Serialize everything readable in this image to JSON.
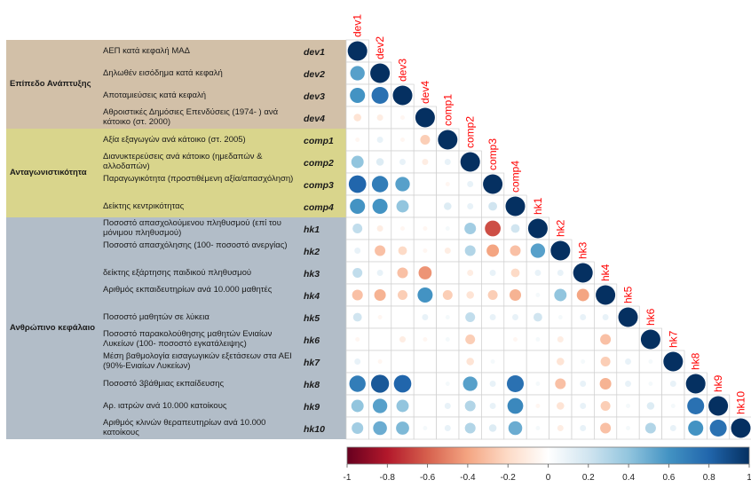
{
  "groups": [
    {
      "label": "Επίπεδο Ανάπτυξης",
      "color": "#d2c0a8",
      "items": [
        {
          "desc": "ΑΕΠ κατά κεφαλή ΜΑΔ",
          "code": "dev1"
        },
        {
          "desc": "Δηλωθέν εισόδημα κατά κεφαλή",
          "code": "dev2"
        },
        {
          "desc": "Αποταμιεύσεις κατά κεφαλή",
          "code": "dev3"
        },
        {
          "desc": "Αθροιστικές  Δημόσιες Επενδύσεις (1974- ) ανά κάτοικο (στ. 2000)",
          "code": "dev4"
        }
      ]
    },
    {
      "label": "Ανταγωνιστικότητα",
      "color": "#d9d58c",
      "items": [
        {
          "desc": "Αξία εξαγωγών ανά κάτοικο (στ. 2005)",
          "code": "comp1"
        },
        {
          "desc": "Διανυκτερεύσεις ανά κάτοικο (ημεδαπών & αλλοδαπών)",
          "code": "comp2"
        },
        {
          "desc": "Παραγωγικότητα (προστιθέμενη αξία/απασχόληση)",
          "code": "comp3"
        },
        {
          "desc": "Δείκτης κεντρικότητας",
          "code": "comp4"
        }
      ]
    },
    {
      "label": "Ανθρώπινο κεφάλαιο",
      "color": "#b2bdc8",
      "items": [
        {
          "desc": "Ποσοστό απασχολούμενου πληθυσμού (επί του μόνιμου πληθυσμού)",
          "code": "hk1"
        },
        {
          "desc": "Ποσοστό απασχόλησης (100- ποσοστό ανεργίας)",
          "code": "hk2"
        },
        {
          "desc": "δείκτης εξάρτησης παιδικού πληθυσμού",
          "code": "hk3"
        },
        {
          "desc": "Αριθμός εκπαιδευτηρίων ανά 10.000 μαθητές",
          "code": "hk4"
        },
        {
          "desc": "Ποσοστό μαθητών σε λύκεια",
          "code": "hk5"
        },
        {
          "desc": "Ποσοστό παρακολούθησης μαθητών Ενιαίων Λυκείων (100- ποσοστό εγκατάλειψης)",
          "code": "hk6"
        },
        {
          "desc": "Μέση βαθμολογία εισαγωγικών εξετάσεων στα ΑΕΙ (90%-Ενιαίων  Λυκείων)",
          "code": "hk7"
        },
        {
          "desc": "Ποσοστό 3βάθμιας εκπαίδευσης",
          "code": "hk8"
        },
        {
          "desc": "Αρ. ιατρών ανά 10.000 κατοίκους",
          "code": "hk9"
        },
        {
          "desc": "Αριθμός κλινών θεραπευτηρίων ανά 10.000 κατοίκους",
          "code": "hk10"
        }
      ]
    }
  ],
  "chart_data": {
    "type": "heatmap",
    "variables": [
      "dev1",
      "dev2",
      "dev3",
      "dev4",
      "comp1",
      "comp2",
      "comp3",
      "comp4",
      "hk1",
      "hk2",
      "hk3",
      "hk4",
      "hk5",
      "hk6",
      "hk7",
      "hk8",
      "hk9",
      "hk10"
    ],
    "lower_triangle": [
      [
        1.0
      ],
      [
        0.55,
        1.0
      ],
      [
        0.6,
        0.75,
        1.0
      ],
      [
        -0.15,
        -0.1,
        -0.05,
        1.0
      ],
      [
        -0.05,
        0.1,
        -0.05,
        -0.25,
        1.0
      ],
      [
        0.4,
        0.15,
        0.1,
        -0.1,
        0.1,
        1.0
      ],
      [
        0.8,
        0.7,
        0.55,
        0.0,
        -0.05,
        0.1,
        1.0
      ],
      [
        0.6,
        0.6,
        0.4,
        0.0,
        0.15,
        0.1,
        0.2,
        1.0
      ],
      [
        0.25,
        -0.1,
        -0.05,
        -0.05,
        0.05,
        0.35,
        -0.65,
        0.2,
        1.0
      ],
      [
        0.1,
        -0.3,
        -0.2,
        -0.05,
        -0.1,
        0.3,
        -0.4,
        -0.3,
        0.55,
        1.0
      ],
      [
        0.25,
        0.1,
        -0.3,
        -0.45,
        0.0,
        -0.1,
        0.1,
        -0.2,
        0.1,
        0.1,
        1.0
      ],
      [
        -0.3,
        -0.35,
        -0.25,
        0.6,
        -0.25,
        -0.15,
        -0.25,
        -0.35,
        0.05,
        0.4,
        -0.4,
        1.0
      ],
      [
        0.2,
        -0.05,
        0.0,
        0.1,
        0.05,
        0.25,
        0.1,
        0.1,
        0.2,
        0.05,
        0.1,
        0.1,
        1.0
      ],
      [
        -0.05,
        0.0,
        -0.1,
        -0.05,
        0.05,
        -0.25,
        0.0,
        -0.05,
        0.05,
        -0.1,
        0.0,
        -0.3,
        0.0,
        1.0
      ],
      [
        0.1,
        -0.05,
        0.0,
        0.0,
        0.0,
        -0.15,
        0.05,
        0.0,
        0.0,
        -0.15,
        0.05,
        -0.25,
        0.1,
        0.05,
        1.0
      ],
      [
        0.7,
        0.85,
        0.8,
        0.0,
        0.05,
        0.55,
        0.1,
        0.75,
        0.05,
        -0.3,
        0.1,
        -0.35,
        0.1,
        0.05,
        0.1,
        1.0
      ],
      [
        0.4,
        0.55,
        0.4,
        0.0,
        0.1,
        0.3,
        0.1,
        0.65,
        -0.05,
        -0.15,
        0.1,
        -0.25,
        0.05,
        0.15,
        0.05,
        0.75,
        1.0
      ],
      [
        0.35,
        0.5,
        0.45,
        0.05,
        0.1,
        0.3,
        0.15,
        0.5,
        0.05,
        -0.1,
        0.1,
        -0.3,
        0.05,
        0.3,
        0.1,
        0.6,
        0.75,
        1.0
      ]
    ],
    "colorbar": {
      "range": [
        -1,
        1
      ],
      "ticks": [
        "-1",
        "-0.8",
        "-0.6",
        "-0.4",
        "-0.2",
        "0",
        "0.2",
        "0.4",
        "0.6",
        "0.8",
        "1"
      ]
    },
    "colors": {
      "low": "#67001f",
      "mid": "#ffffff",
      "high": "#053061",
      "label": "#ff0000"
    }
  }
}
